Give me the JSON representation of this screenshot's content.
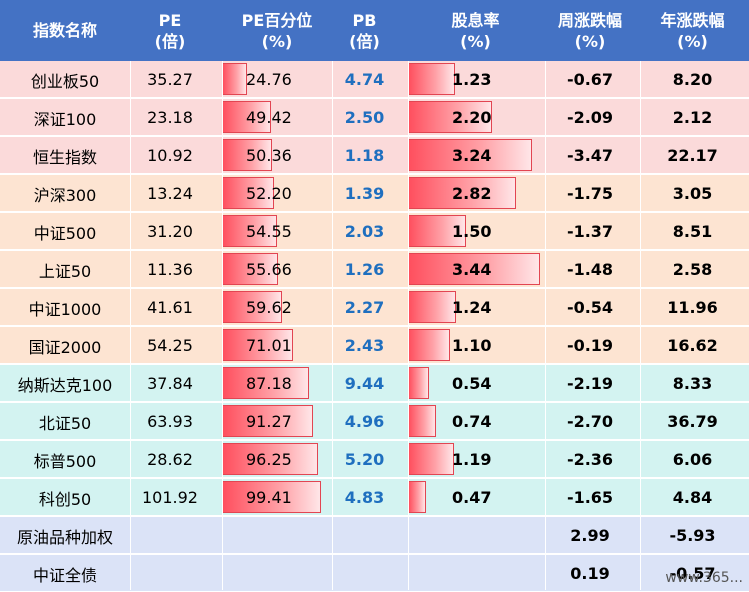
{
  "headers": [
    {
      "l1": "指数名称",
      "l2": ""
    },
    {
      "l1": "PE",
      "l2": "(倍)"
    },
    {
      "l1": "PE百分位",
      "l2": "(%)"
    },
    {
      "l1": "PB",
      "l2": "(倍)"
    },
    {
      "l1": "股息率",
      "l2": "(%)"
    },
    {
      "l1": "周涨跌幅",
      "l2": "(%)"
    },
    {
      "l1": "年涨跌幅",
      "l2": "(%)"
    }
  ],
  "rows": [
    {
      "name": "创业板50",
      "pe": "35.27",
      "pe_pct": "24.76",
      "pb": "4.74",
      "div": "1.23",
      "wk": "-0.67",
      "yr": "8.20",
      "bg": "#fbdada"
    },
    {
      "name": "深证100",
      "pe": "23.18",
      "pe_pct": "49.42",
      "pb": "2.50",
      "div": "2.20",
      "wk": "-2.09",
      "yr": "2.12",
      "bg": "#fbdada"
    },
    {
      "name": "恒生指数",
      "pe": "10.92",
      "pe_pct": "50.36",
      "pb": "1.18",
      "div": "3.24",
      "wk": "-3.47",
      "yr": "22.17",
      "bg": "#fbdada"
    },
    {
      "name": "沪深300",
      "pe": "13.24",
      "pe_pct": "52.20",
      "pb": "1.39",
      "div": "2.82",
      "wk": "-1.75",
      "yr": "3.05",
      "bg": "#fde4d2"
    },
    {
      "name": "中证500",
      "pe": "31.20",
      "pe_pct": "54.55",
      "pb": "2.03",
      "div": "1.50",
      "wk": "-1.37",
      "yr": "8.51",
      "bg": "#fde4d2"
    },
    {
      "name": "上证50",
      "pe": "11.36",
      "pe_pct": "55.66",
      "pb": "1.26",
      "div": "3.44",
      "wk": "-1.48",
      "yr": "2.58",
      "bg": "#fde4d2"
    },
    {
      "name": "中证1000",
      "pe": "41.61",
      "pe_pct": "59.62",
      "pb": "2.27",
      "div": "1.24",
      "wk": "-0.54",
      "yr": "11.96",
      "bg": "#fde4d2"
    },
    {
      "name": "国证2000",
      "pe": "54.25",
      "pe_pct": "71.01",
      "pb": "2.43",
      "div": "1.10",
      "wk": "-0.19",
      "yr": "16.62",
      "bg": "#fde4d2"
    },
    {
      "name": "纳斯达克100",
      "pe": "37.84",
      "pe_pct": "87.18",
      "pb": "9.44",
      "div": "0.54",
      "wk": "-2.19",
      "yr": "8.33",
      "bg": "#d3f3f1"
    },
    {
      "name": "北证50",
      "pe": "63.93",
      "pe_pct": "91.27",
      "pb": "4.96",
      "div": "0.74",
      "wk": "-2.70",
      "yr": "36.79",
      "bg": "#d3f3f1"
    },
    {
      "name": "标普500",
      "pe": "28.62",
      "pe_pct": "96.25",
      "pb": "5.20",
      "div": "1.19",
      "wk": "-2.36",
      "yr": "6.06",
      "bg": "#d3f3f1"
    },
    {
      "name": "科创50",
      "pe": "101.92",
      "pe_pct": "99.41",
      "pb": "4.83",
      "div": "0.47",
      "wk": "-1.65",
      "yr": "4.84",
      "bg": "#d3f3f1"
    },
    {
      "name": "原油品种加权",
      "pe": "",
      "pe_pct": "",
      "pb": "",
      "div": "",
      "wk": "2.99",
      "yr": "-5.93",
      "bg": "#dbe3f7"
    },
    {
      "name": "中证全债",
      "pe": "",
      "pe_pct": "",
      "pb": "",
      "div": "",
      "wk": "0.19",
      "yr": "-0.57",
      "bg": "#dbe3f7"
    }
  ],
  "watermark": "www.365..."
}
